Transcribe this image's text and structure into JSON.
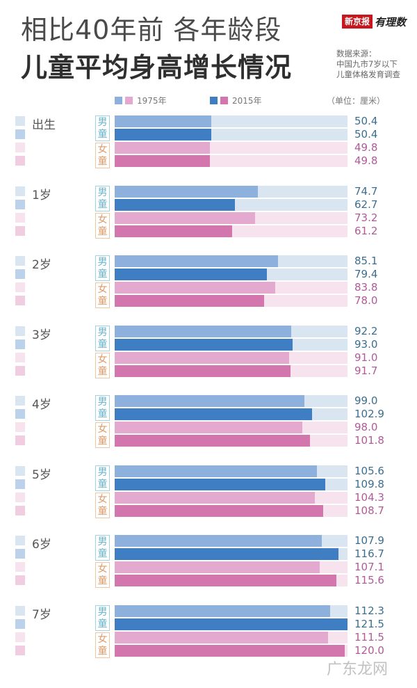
{
  "title": {
    "line1": "相比40年前 各年龄段",
    "line2": "儿童平均身高增长情况"
  },
  "logo": {
    "brand": "新京报",
    "sub": "有理数"
  },
  "source": {
    "line1": "数据来源：",
    "line2": "中国九市7岁以下",
    "line3": "儿童体格发育调查"
  },
  "watermark": "广东龙网",
  "colors": {
    "boy_1975": "#8db0dd",
    "boy_2015": "#3f7ec2",
    "girl_1975": "#e3a9cf",
    "girl_2015": "#d476ae",
    "boy_bg": "#d9e5f1",
    "girl_bg": "#f7e3ee",
    "boy_text": "#3b6e8e",
    "girl_text": "#b15a98"
  },
  "chart_data": {
    "type": "bar",
    "orientation": "horizontal",
    "title": "相比40年前 各年龄段 儿童平均身高增长情况",
    "unit": "（单位：厘米）",
    "legend": [
      "1975年",
      "2015年"
    ],
    "gender_labels": {
      "boy": "男童",
      "girl": "女童"
    },
    "categories": [
      "出生",
      "1岁",
      "2岁",
      "3岁",
      "4岁",
      "5岁",
      "6岁",
      "7岁"
    ],
    "series": [
      {
        "name": "男童 1975年",
        "values": [
          50.4,
          74.7,
          85.1,
          92.2,
          99.0,
          105.6,
          107.9,
          112.3
        ]
      },
      {
        "name": "男童 2015年",
        "values": [
          50.4,
          62.7,
          79.4,
          93.0,
          102.9,
          109.8,
          116.7,
          121.5
        ]
      },
      {
        "name": "女童 1975年",
        "values": [
          49.8,
          73.2,
          83.8,
          91.0,
          98.0,
          104.3,
          107.1,
          111.5
        ]
      },
      {
        "name": "女童 2015年",
        "values": [
          49.8,
          61.2,
          78.0,
          91.7,
          101.8,
          108.7,
          115.6,
          120.0
        ]
      }
    ],
    "xlim": [
      0,
      121.5
    ]
  }
}
